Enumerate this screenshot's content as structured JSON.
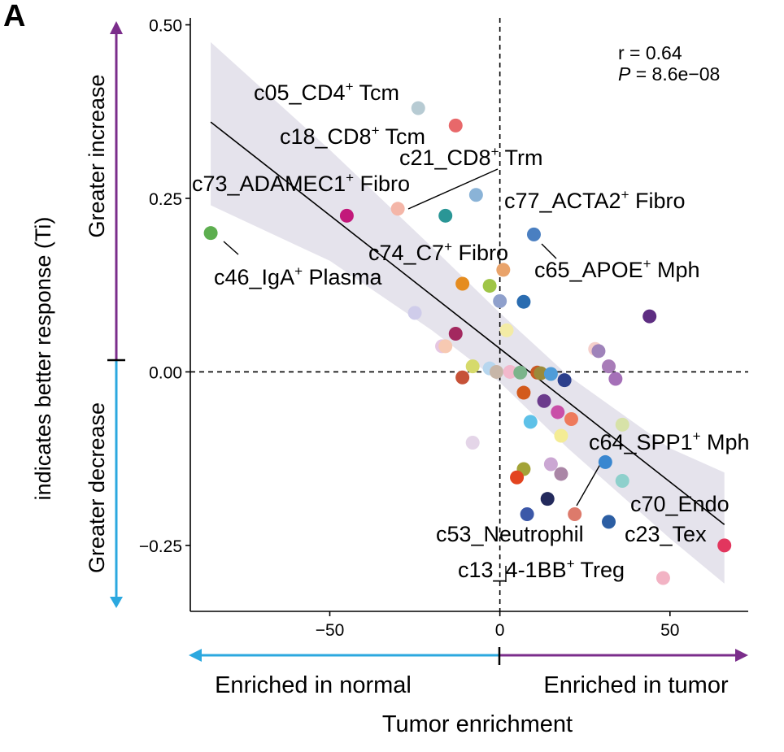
{
  "panel_label": "A",
  "stats": {
    "r_text": "r = 0.64",
    "p_label": "P",
    "p_value": " = 8.6e−08"
  },
  "y_side": {
    "title": "indicates better response (Ti)",
    "increase_label": "Greater increase",
    "decrease_label": "Greater decrease",
    "increase_color": "#7B2D8B",
    "decrease_color": "#2BA8DF"
  },
  "x_side": {
    "title": "Tumor enrichment",
    "normal_label": "Enriched in normal",
    "tumor_label": "Enriched in tumor",
    "normal_color": "#2BA8DF",
    "tumor_color": "#7B2D8B"
  },
  "chart_data": {
    "type": "scatter",
    "xlabel": "Tumor enrichment",
    "ylabel": "indicates better response (Ti)",
    "xlim": [
      -91,
      73
    ],
    "ylim": [
      -0.345,
      0.51
    ],
    "x_ticks": [
      -50,
      0,
      50
    ],
    "x_tick_labels": [
      "−50",
      "0",
      "50"
    ],
    "y_ticks": [
      0.5,
      0.25,
      0.0,
      -0.25
    ],
    "y_tick_labels": [
      "0.50",
      "0.25",
      "0.00",
      "−0.25"
    ],
    "reference_lines": {
      "x": 0,
      "y": 0
    },
    "grid": false,
    "fit_line": {
      "x": [
        -85,
        66
      ],
      "y": [
        0.36,
        -0.22
      ]
    },
    "confidence_band": {
      "x": [
        -85,
        -50,
        -20,
        0,
        20,
        50,
        66
      ],
      "upper": [
        0.475,
        0.32,
        0.18,
        0.085,
        -0.005,
        -0.11,
        -0.145
      ],
      "lower": [
        0.24,
        0.16,
        0.06,
        -0.015,
        -0.11,
        -0.24,
        -0.305
      ]
    },
    "points": [
      {
        "x": -85,
        "y": 0.2,
        "color": "#5DAE4F"
      },
      {
        "x": -45,
        "y": 0.225,
        "color": "#C2187A"
      },
      {
        "x": -30,
        "y": 0.235,
        "color": "#F4B6A8"
      },
      {
        "x": -24,
        "y": 0.38,
        "color": "#B7CBD3"
      },
      {
        "x": -13,
        "y": 0.355,
        "color": "#E8686A"
      },
      {
        "x": -16,
        "y": 0.225,
        "color": "#2A9696"
      },
      {
        "x": -7,
        "y": 0.255,
        "color": "#8AB3D7"
      },
      {
        "x": 10,
        "y": 0.198,
        "color": "#4A7FC1"
      },
      {
        "x": 1,
        "y": 0.147,
        "color": "#E9A36A"
      },
      {
        "x": -11,
        "y": 0.127,
        "color": "#E58C1F"
      },
      {
        "x": -3,
        "y": 0.124,
        "color": "#9FC547"
      },
      {
        "x": 0,
        "y": 0.102,
        "color": "#8FA0CC"
      },
      {
        "x": 7,
        "y": 0.101,
        "color": "#2A6CB0"
      },
      {
        "x": -25,
        "y": 0.085,
        "color": "#CFCCEA"
      },
      {
        "x": 2,
        "y": 0.06,
        "color": "#F3EBA5"
      },
      {
        "x": -13,
        "y": 0.055,
        "color": "#A3285F"
      },
      {
        "x": 44,
        "y": 0.08,
        "color": "#5E2E82"
      },
      {
        "x": -17,
        "y": 0.037,
        "color": "#E5C6E2"
      },
      {
        "x": -16,
        "y": 0.037,
        "color": "#F7C9B2"
      },
      {
        "x": 28,
        "y": 0.033,
        "color": "#F5CFCB"
      },
      {
        "x": 29,
        "y": 0.03,
        "color": "#9F83BA"
      },
      {
        "x": 32,
        "y": 0.008,
        "color": "#A87CB8"
      },
      {
        "x": 34,
        "y": -0.01,
        "color": "#A570B8"
      },
      {
        "x": -11,
        "y": -0.008,
        "color": "#C65238"
      },
      {
        "x": -8,
        "y": 0.008,
        "color": "#D6DA6B"
      },
      {
        "x": -3,
        "y": 0.005,
        "color": "#B7D6EE"
      },
      {
        "x": -1,
        "y": 0.0,
        "color": "#C7B6A8"
      },
      {
        "x": 3,
        "y": 0.0,
        "color": "#F2B8CC"
      },
      {
        "x": 6,
        "y": -0.001,
        "color": "#7BB48B"
      },
      {
        "x": 11,
        "y": -0.001,
        "color": "#C95A25"
      },
      {
        "x": 12,
        "y": -0.002,
        "color": "#9B8A3A"
      },
      {
        "x": 15,
        "y": -0.003,
        "color": "#4F9CD8"
      },
      {
        "x": 19,
        "y": -0.012,
        "color": "#2C3F8C"
      },
      {
        "x": 7,
        "y": -0.03,
        "color": "#D35A1C"
      },
      {
        "x": 13,
        "y": -0.042,
        "color": "#6B3B8C"
      },
      {
        "x": 17,
        "y": -0.058,
        "color": "#C94FA8"
      },
      {
        "x": 21,
        "y": -0.068,
        "color": "#EE7A5C"
      },
      {
        "x": 9,
        "y": -0.072,
        "color": "#5EC1E8"
      },
      {
        "x": 36,
        "y": -0.076,
        "color": "#D7E2A8"
      },
      {
        "x": -8,
        "y": -0.102,
        "color": "#E4D5E8"
      },
      {
        "x": 18,
        "y": -0.092,
        "color": "#F4EC95"
      },
      {
        "x": 31,
        "y": -0.13,
        "color": "#3A87D0"
      },
      {
        "x": 15,
        "y": -0.133,
        "color": "#CBA7D3"
      },
      {
        "x": 7,
        "y": -0.14,
        "color": "#A3A337"
      },
      {
        "x": 5,
        "y": -0.152,
        "color": "#E3441F"
      },
      {
        "x": 18,
        "y": -0.147,
        "color": "#AA86A6"
      },
      {
        "x": 36,
        "y": -0.157,
        "color": "#8ED0CC"
      },
      {
        "x": 14,
        "y": -0.183,
        "color": "#232A5C"
      },
      {
        "x": 8,
        "y": -0.205,
        "color": "#3C58A8"
      },
      {
        "x": 22,
        "y": -0.205,
        "color": "#DD7A6B"
      },
      {
        "x": 32,
        "y": -0.216,
        "color": "#2C5EA3"
      },
      {
        "x": 66,
        "y": -0.25,
        "color": "#E2365E"
      },
      {
        "x": 48,
        "y": -0.297,
        "color": "#F2B3C4"
      }
    ],
    "annotations": [
      {
        "base": "c05_CD4",
        "sup": "+",
        "rest": " Tcm"
      },
      {
        "base": "c18_CD8",
        "sup": "+",
        "rest": " Tcm"
      },
      {
        "base": "c21_CD8",
        "sup": "+",
        "rest": " Trm"
      },
      {
        "base": "c73_ADAMEC1",
        "sup": "+",
        "rest": " Fibro"
      },
      {
        "base": "c77_ACTA2",
        "sup": "+",
        "rest": " Fibro"
      },
      {
        "base": "c74_C7",
        "sup": "+",
        "rest": " Fibro"
      },
      {
        "base": "c65_APOE",
        "sup": "+",
        "rest": " Mph"
      },
      {
        "base": "c46_IgA",
        "sup": "+",
        "rest": " Plasma"
      },
      {
        "base": "c64_SPP1",
        "sup": "+",
        "rest": " Mph"
      },
      {
        "base": "c70_Endo",
        "sup": "",
        "rest": ""
      },
      {
        "base": "c53_Neutrophil",
        "sup": "",
        "rest": ""
      },
      {
        "base": "c23_Tex",
        "sup": "",
        "rest": ""
      },
      {
        "base": "c13_4-1BB",
        "sup": "+",
        "rest": " Treg"
      }
    ]
  }
}
